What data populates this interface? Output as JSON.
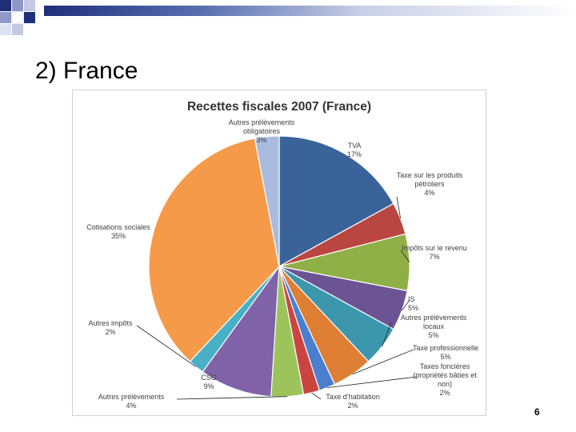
{
  "slide": {
    "title": "2) France",
    "page_number": "6"
  },
  "chart_data": {
    "type": "pie",
    "title": "Recettes fiscales 2007 (France)",
    "slices": [
      {
        "label": "TVA",
        "value": 17,
        "display": "17%",
        "color": "#3a6499"
      },
      {
        "label": "Taxe sur les produits pétroliers",
        "value": 4,
        "display": "4%",
        "color": "#b94641"
      },
      {
        "label": "Impôts sur le revenu",
        "value": 7,
        "display": "7%",
        "color": "#8fb046"
      },
      {
        "label": "IS",
        "value": 5,
        "display": "5%",
        "color": "#6c5394"
      },
      {
        "label": "Autres prélèvements locaux",
        "value": 5,
        "display": "5%",
        "color": "#3c97ad"
      },
      {
        "label": "Taxe professionnelle",
        "value": 5,
        "display": "5%",
        "color": "#df7f33"
      },
      {
        "label": "Taxes foncières (propriétés bâties et non)",
        "value": 2,
        "display": "2%",
        "color": "#4a7fd0"
      },
      {
        "label": "Taxe d'habitation",
        "value": 2,
        "display": "2%",
        "color": "#cc4440"
      },
      {
        "label": "Autres prélèvements",
        "value": 4,
        "display": "4%",
        "color": "#9dc45a"
      },
      {
        "label": "CSG",
        "value": 9,
        "display": "9%",
        "color": "#7f62a8"
      },
      {
        "label": "Autres impôts",
        "value": 2,
        "display": "2%",
        "color": "#47b0c6"
      },
      {
        "label": "Cotisations sociales",
        "value": 35,
        "display": "35%",
        "color": "#f59a49"
      },
      {
        "label": "Autres prélèvements obligatoires",
        "value": 3,
        "display": "3%",
        "color": "#a9bcdf"
      }
    ]
  }
}
